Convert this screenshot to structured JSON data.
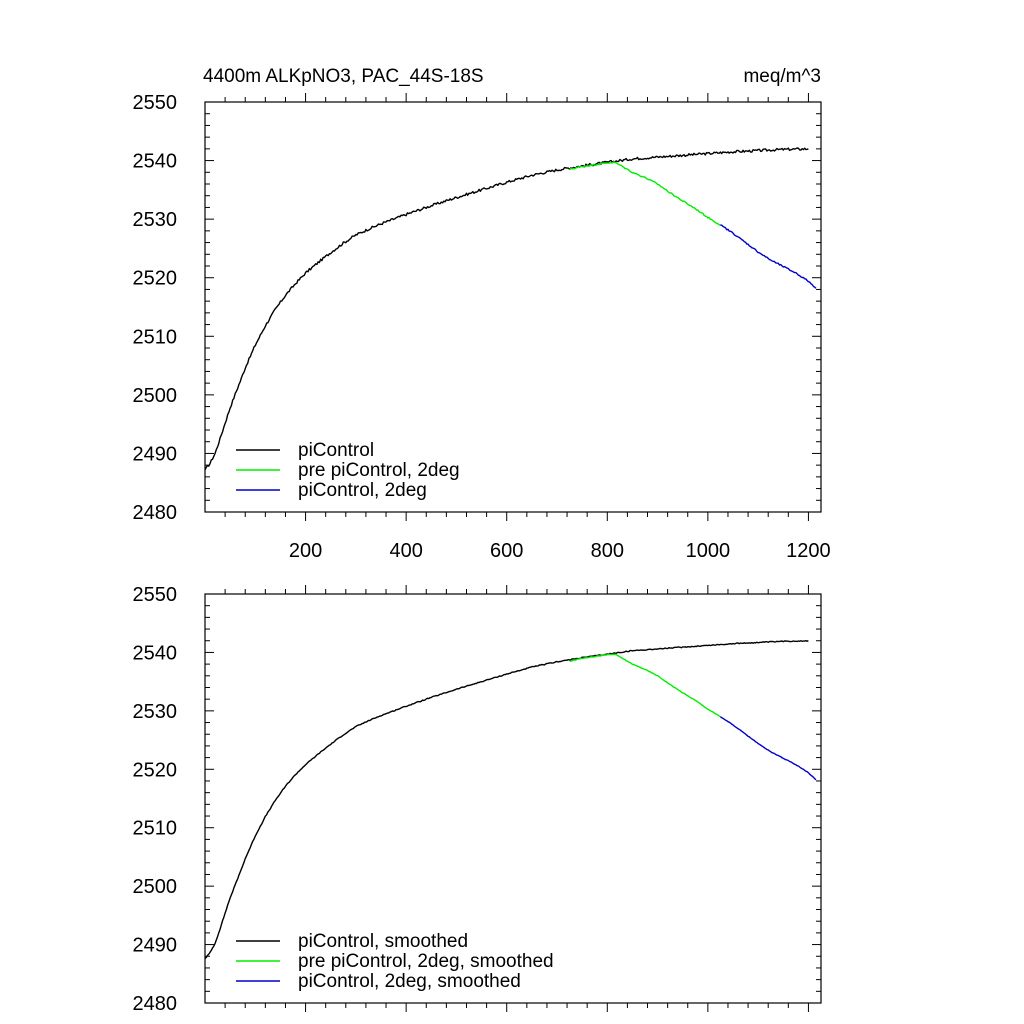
{
  "chart_data": [
    {
      "type": "line",
      "title_left": "4400m ALKpNO3, PAC_44S-18S",
      "title_right": "meq/m^3",
      "xlim": [
        0,
        1225
      ],
      "ylim": [
        2480,
        2550
      ],
      "xticks": [
        200,
        400,
        600,
        800,
        1000,
        1200
      ],
      "xtick_labels": [
        "200",
        "400",
        "600",
        "800",
        "1000",
        "1200"
      ],
      "yticks": [
        2480,
        2490,
        2500,
        2510,
        2520,
        2530,
        2540,
        2550
      ],
      "ytick_labels": [
        "2480",
        "2490",
        "2500",
        "2510",
        "2520",
        "2530",
        "2540",
        "2550"
      ],
      "legend_position": "bottom-left",
      "series": [
        {
          "name": "piControl",
          "color": "#000000",
          "noise": 0.22,
          "x": [
            0,
            10,
            20,
            30,
            40,
            50,
            60,
            70,
            80,
            100,
            120,
            140,
            160,
            180,
            200,
            225,
            250,
            275,
            300,
            325,
            350,
            400,
            450,
            500,
            550,
            600,
            650,
            700,
            750,
            800,
            850,
            900,
            950,
            1000,
            1050,
            1100,
            1150,
            1200
          ],
          "y": [
            2487.2,
            2488.3,
            2490.0,
            2492.5,
            2495.2,
            2497.8,
            2500.1,
            2502.3,
            2504.6,
            2508.5,
            2511.8,
            2514.6,
            2517.0,
            2519.0,
            2520.8,
            2522.6,
            2524.3,
            2525.9,
            2527.3,
            2528.3,
            2529.2,
            2530.8,
            2532.3,
            2533.7,
            2535.0,
            2536.3,
            2537.5,
            2538.4,
            2539.1,
            2539.7,
            2540.3,
            2540.6,
            2540.9,
            2541.2,
            2541.5,
            2541.7,
            2541.9,
            2542.0
          ]
        },
        {
          "name": "pre piControl, 2deg",
          "color": "#00ee00",
          "noise": 0.12,
          "x": [
            725,
            750,
            775,
            800,
            815,
            830,
            850,
            875,
            900,
            925,
            950,
            975,
            1000,
            1025
          ],
          "y": [
            2538.5,
            2539.0,
            2539.3,
            2539.6,
            2539.7,
            2539.0,
            2538.0,
            2537.1,
            2536.0,
            2534.5,
            2533.1,
            2531.8,
            2530.3,
            2529.0
          ]
        },
        {
          "name": "piControl, 2deg",
          "color": "#0000cc",
          "noise": 0.12,
          "x": [
            1025,
            1050,
            1075,
            1100,
            1125,
            1150,
            1175,
            1200,
            1215
          ],
          "y": [
            2529.0,
            2527.6,
            2526.0,
            2524.4,
            2523.0,
            2521.9,
            2520.8,
            2519.4,
            2518.2
          ]
        }
      ]
    },
    {
      "type": "line",
      "xlim": [
        0,
        1225
      ],
      "ylim": [
        2480,
        2550
      ],
      "xticks": [
        200,
        400,
        600,
        800,
        1000,
        1200
      ],
      "yticks": [
        2480,
        2490,
        2500,
        2510,
        2520,
        2530,
        2540,
        2550
      ],
      "ytick_labels": [
        "2480",
        "2490",
        "2500",
        "2510",
        "2520",
        "2530",
        "2540",
        "2550"
      ],
      "legend_position": "bottom-left",
      "series": [
        {
          "name": "piControl, smoothed",
          "color": "#000000",
          "noise": 0.08,
          "x": [
            0,
            10,
            20,
            30,
            40,
            50,
            60,
            70,
            80,
            100,
            120,
            140,
            160,
            180,
            200,
            225,
            250,
            275,
            300,
            325,
            350,
            400,
            450,
            500,
            550,
            600,
            650,
            700,
            750,
            800,
            850,
            900,
            950,
            1000,
            1050,
            1100,
            1150,
            1200
          ],
          "y": [
            2487.6,
            2488.6,
            2490.2,
            2492.7,
            2495.4,
            2498.0,
            2500.2,
            2502.4,
            2504.7,
            2508.6,
            2511.9,
            2514.7,
            2517.1,
            2519.1,
            2520.8,
            2522.6,
            2524.3,
            2525.9,
            2527.3,
            2528.3,
            2529.2,
            2530.8,
            2532.3,
            2533.7,
            2535.0,
            2536.3,
            2537.5,
            2538.4,
            2539.1,
            2539.7,
            2540.3,
            2540.6,
            2540.9,
            2541.2,
            2541.5,
            2541.7,
            2541.9,
            2542.0
          ]
        },
        {
          "name": "pre piControl, 2deg, smoothed",
          "color": "#00ee00",
          "noise": 0.05,
          "x": [
            725,
            750,
            775,
            800,
            815,
            830,
            850,
            875,
            900,
            925,
            950,
            975,
            1000,
            1025
          ],
          "y": [
            2538.5,
            2539.0,
            2539.3,
            2539.6,
            2539.7,
            2539.0,
            2538.0,
            2537.1,
            2536.0,
            2534.5,
            2533.1,
            2531.8,
            2530.3,
            2529.0
          ]
        },
        {
          "name": "piControl, 2deg, smoothed",
          "color": "#0000cc",
          "noise": 0.05,
          "x": [
            1025,
            1050,
            1075,
            1100,
            1125,
            1150,
            1175,
            1200,
            1215
          ],
          "y": [
            2529.0,
            2527.6,
            2526.0,
            2524.4,
            2523.0,
            2521.9,
            2520.8,
            2519.4,
            2518.2
          ]
        }
      ]
    }
  ]
}
